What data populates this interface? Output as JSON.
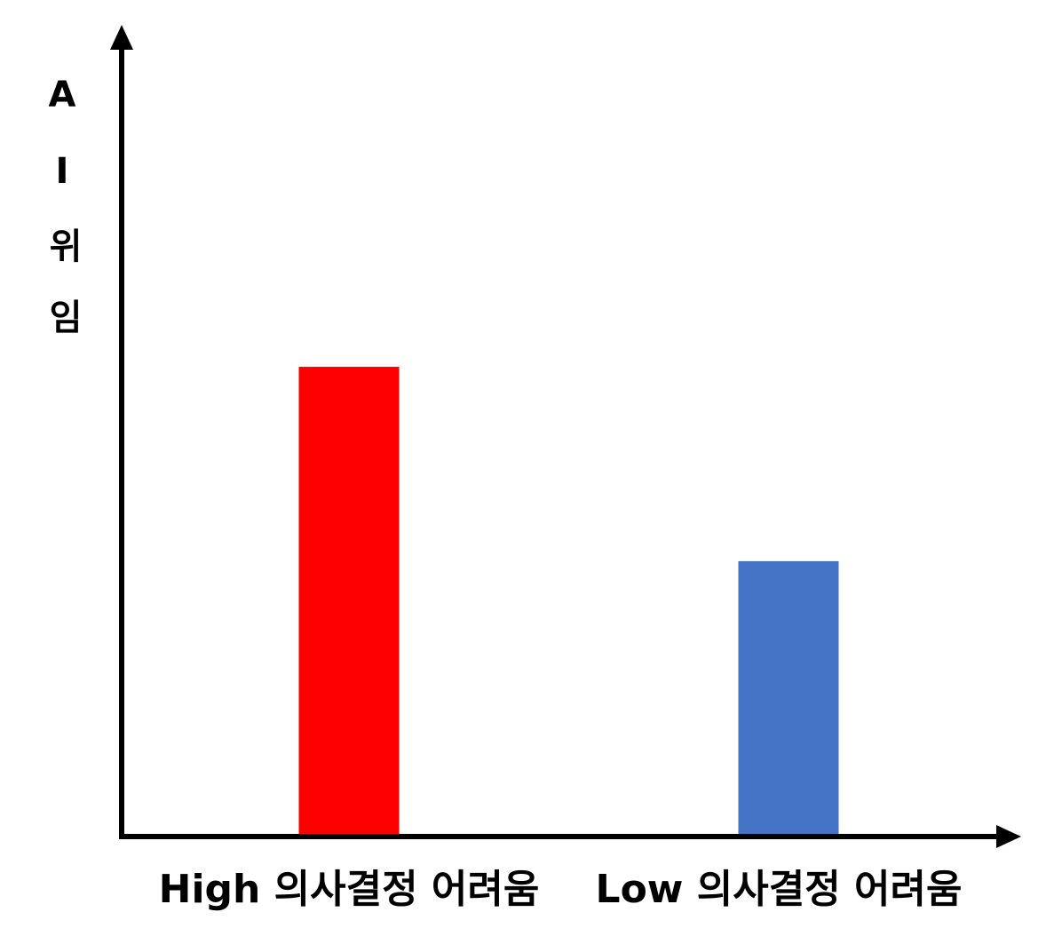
{
  "chart_data": {
    "type": "bar",
    "y_label": "AI위임",
    "categories": [
      "High 의사결정 어려움",
      "Low 의사결정 어려움"
    ],
    "values": [
      58,
      34
    ],
    "colors": [
      "#ff0000",
      "#4472c4"
    ],
    "ylim": [
      0,
      100
    ]
  }
}
